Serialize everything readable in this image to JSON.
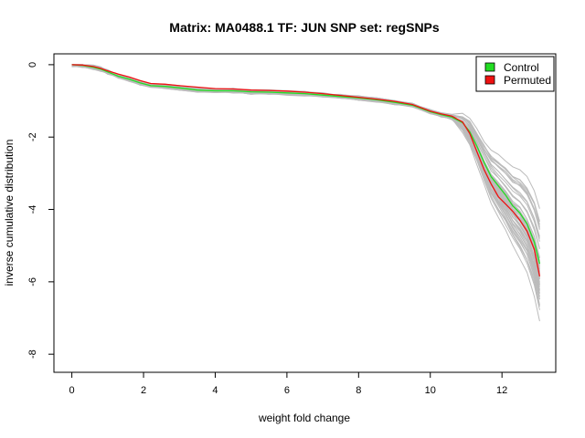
{
  "chart_data": {
    "type": "line",
    "title": "Matrix: MA0488.1 TF: JUN SNP set: regSNPs",
    "xlabel": "weight fold change",
    "ylabel": "inverse cumulative distribution",
    "xlim": [
      -0.5,
      13.5
    ],
    "ylim": [
      -8.5,
      0.3
    ],
    "x_ticks": [
      0,
      2,
      4,
      6,
      8,
      10,
      12
    ],
    "y_ticks": [
      0,
      -2,
      -4,
      -6,
      -8
    ],
    "grid": false,
    "legend_position": "top-right",
    "legend": [
      {
        "label": "Control",
        "color": "#22dd22"
      },
      {
        "label": "Permuted",
        "color": "#ee1111"
      }
    ],
    "background_series": {
      "color": "#bbbbbb",
      "count": 50,
      "description_note": ""
    },
    "series": [
      {
        "name": "Control",
        "color": "#22dd22",
        "x": [
          0,
          0.3,
          0.6,
          0.8,
          1.0,
          1.3,
          1.6,
          1.9,
          2.2,
          2.6,
          3.0,
          3.5,
          4.0,
          4.5,
          5.0,
          5.5,
          6.0,
          6.5,
          7.0,
          7.5,
          8.0,
          8.5,
          9.0,
          9.5,
          10.0,
          10.3,
          10.6,
          10.9,
          11.1,
          11.3,
          11.5,
          11.7,
          11.9,
          12.1,
          12.3,
          12.5,
          12.7,
          12.9,
          13.05
        ],
        "y": [
          0,
          -0.02,
          -0.07,
          -0.12,
          -0.2,
          -0.32,
          -0.4,
          -0.5,
          -0.58,
          -0.6,
          -0.64,
          -0.7,
          -0.72,
          -0.72,
          -0.75,
          -0.76,
          -0.78,
          -0.8,
          -0.84,
          -0.88,
          -0.92,
          -0.97,
          -1.04,
          -1.12,
          -1.3,
          -1.38,
          -1.45,
          -1.6,
          -1.85,
          -2.25,
          -2.7,
          -3.1,
          -3.35,
          -3.6,
          -3.9,
          -4.1,
          -4.4,
          -4.9,
          -5.5
        ]
      },
      {
        "name": "Permuted",
        "color": "#ee1111",
        "x": [
          0,
          0.3,
          0.6,
          0.8,
          1.0,
          1.3,
          1.6,
          1.9,
          2.2,
          2.6,
          3.0,
          3.5,
          4.0,
          4.5,
          5.0,
          5.5,
          6.0,
          6.5,
          7.0,
          7.5,
          8.0,
          8.5,
          9.0,
          9.5,
          10.0,
          10.3,
          10.6,
          10.9,
          11.1,
          11.3,
          11.5,
          11.7,
          11.9,
          12.1,
          12.3,
          12.5,
          12.7,
          12.9,
          13.05
        ],
        "y": [
          0,
          -0.01,
          -0.05,
          -0.1,
          -0.17,
          -0.26,
          -0.34,
          -0.44,
          -0.52,
          -0.54,
          -0.58,
          -0.62,
          -0.66,
          -0.67,
          -0.7,
          -0.71,
          -0.73,
          -0.76,
          -0.8,
          -0.85,
          -0.9,
          -0.95,
          -1.01,
          -1.1,
          -1.28,
          -1.36,
          -1.42,
          -1.58,
          -1.9,
          -2.4,
          -2.9,
          -3.3,
          -3.65,
          -3.85,
          -4.05,
          -4.3,
          -4.6,
          -5.1,
          -5.85
        ]
      }
    ]
  }
}
